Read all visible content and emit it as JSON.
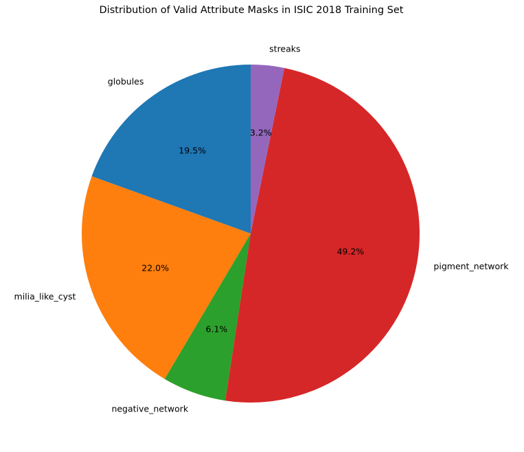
{
  "chart_data": {
    "type": "pie",
    "title": "Distribution of Valid Attribute Masks in ISIC 2018 Training Set",
    "start_angle_deg": 90,
    "direction": "counterclockwise",
    "slices": [
      {
        "label": "globules",
        "value": 19.5,
        "pct_label": "19.5%",
        "color": "#1f77b4"
      },
      {
        "label": "milia_like_cyst",
        "value": 22.0,
        "pct_label": "22.0%",
        "color": "#ff7f0e"
      },
      {
        "label": "negative_network",
        "value": 6.1,
        "pct_label": "6.1%",
        "color": "#2ca02c"
      },
      {
        "label": "pigment_network",
        "value": 49.2,
        "pct_label": "49.2%",
        "color": "#d62728"
      },
      {
        "label": "streaks",
        "value": 3.2,
        "pct_label": "3.2%",
        "color": "#9467bd"
      }
    ]
  }
}
